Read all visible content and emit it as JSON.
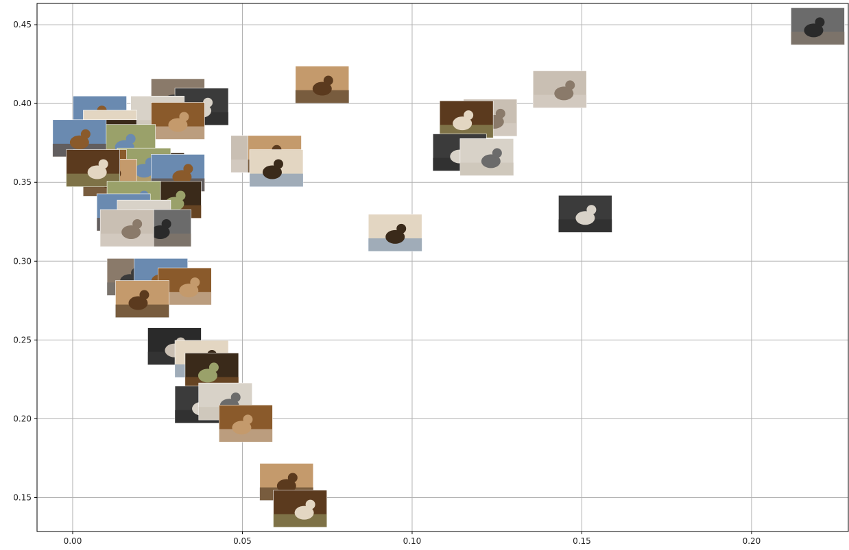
{
  "chart_data": {
    "type": "scatter",
    "title": "",
    "xlabel": "",
    "ylabel": "",
    "xlim": [
      -0.0105,
      0.2285
    ],
    "ylim": [
      0.1285,
      0.4635
    ],
    "grid": true,
    "xticks": [
      0.0,
      0.05,
      0.1,
      0.15,
      0.2
    ],
    "xtick_labels": [
      "0.00",
      "0.05",
      "0.10",
      "0.15",
      "0.20"
    ],
    "yticks": [
      0.15,
      0.2,
      0.25,
      0.3,
      0.35,
      0.4,
      0.45
    ],
    "ytick_labels": [
      "0.15",
      "0.20",
      "0.25",
      "0.30",
      "0.35",
      "0.40",
      "0.45"
    ],
    "marker": "image thumbnail",
    "points": [
      {
        "x": 0.2195,
        "y": 0.449,
        "subject": "cat"
      },
      {
        "x": 0.0735,
        "y": 0.412,
        "subject": "dog"
      },
      {
        "x": 0.1435,
        "y": 0.409,
        "subject": "cat"
      },
      {
        "x": 0.031,
        "y": 0.404,
        "subject": "cat"
      },
      {
        "x": 0.038,
        "y": 0.398,
        "subject": "cat"
      },
      {
        "x": 0.025,
        "y": 0.393,
        "subject": "cat"
      },
      {
        "x": 0.008,
        "y": 0.393,
        "subject": "dog"
      },
      {
        "x": 0.031,
        "y": 0.389,
        "subject": "dog"
      },
      {
        "x": 0.123,
        "y": 0.391,
        "subject": "cat"
      },
      {
        "x": 0.116,
        "y": 0.39,
        "subject": "dog"
      },
      {
        "x": 0.011,
        "y": 0.384,
        "subject": "dog"
      },
      {
        "x": 0.011,
        "y": 0.378,
        "subject": "dog"
      },
      {
        "x": 0.0165,
        "y": 0.375,
        "subject": "dog"
      },
      {
        "x": 0.002,
        "y": 0.378,
        "subject": "dog"
      },
      {
        "x": 0.0545,
        "y": 0.368,
        "subject": "cat"
      },
      {
        "x": 0.0595,
        "y": 0.368,
        "subject": "dog"
      },
      {
        "x": 0.114,
        "y": 0.369,
        "subject": "cat"
      },
      {
        "x": 0.122,
        "y": 0.366,
        "subject": "cat"
      },
      {
        "x": 0.025,
        "y": 0.357,
        "subject": "dog"
      },
      {
        "x": 0.021,
        "y": 0.36,
        "subject": "dog"
      },
      {
        "x": 0.031,
        "y": 0.356,
        "subject": "dog"
      },
      {
        "x": 0.008,
        "y": 0.359,
        "subject": "dog"
      },
      {
        "x": 0.011,
        "y": 0.353,
        "subject": "dog"
      },
      {
        "x": 0.006,
        "y": 0.359,
        "subject": "dog"
      },
      {
        "x": 0.06,
        "y": 0.359,
        "subject": "dog"
      },
      {
        "x": 0.03,
        "y": 0.339,
        "subject": "dog"
      },
      {
        "x": 0.018,
        "y": 0.339,
        "subject": "dog"
      },
      {
        "x": 0.015,
        "y": 0.331,
        "subject": "dog"
      },
      {
        "x": 0.151,
        "y": 0.33,
        "subject": "cat"
      },
      {
        "x": 0.021,
        "y": 0.327,
        "subject": "cat"
      },
      {
        "x": 0.027,
        "y": 0.321,
        "subject": "cat"
      },
      {
        "x": 0.095,
        "y": 0.318,
        "subject": "dog"
      },
      {
        "x": 0.016,
        "y": 0.321,
        "subject": "cat"
      },
      {
        "x": 0.018,
        "y": 0.29,
        "subject": "cat"
      },
      {
        "x": 0.026,
        "y": 0.29,
        "subject": "dog"
      },
      {
        "x": 0.033,
        "y": 0.284,
        "subject": "dog"
      },
      {
        "x": 0.0205,
        "y": 0.276,
        "subject": "dog"
      },
      {
        "x": 0.03,
        "y": 0.246,
        "subject": "cat"
      },
      {
        "x": 0.038,
        "y": 0.238,
        "subject": "dog"
      },
      {
        "x": 0.041,
        "y": 0.23,
        "subject": "dog"
      },
      {
        "x": 0.038,
        "y": 0.209,
        "subject": "cat"
      },
      {
        "x": 0.045,
        "y": 0.211,
        "subject": "cat"
      },
      {
        "x": 0.051,
        "y": 0.197,
        "subject": "dog"
      },
      {
        "x": 0.063,
        "y": 0.16,
        "subject": "dog"
      },
      {
        "x": 0.067,
        "y": 0.143,
        "subject": "dog"
      }
    ]
  },
  "colors": {
    "background": "#ffffff",
    "grid": "#b0b0b0",
    "axis": "#000000",
    "cat_palette": [
      "#6b6b6b",
      "#2a2a2a",
      "#c9bfb3",
      "#8a7a6a",
      "#3b3b3b",
      "#d8d2c8"
    ],
    "dog_palette": [
      "#8a5a2b",
      "#c49a6c",
      "#5b3a1e",
      "#e3d6c2",
      "#3a2a1a",
      "#9aa16a",
      "#6a8ab0"
    ]
  }
}
